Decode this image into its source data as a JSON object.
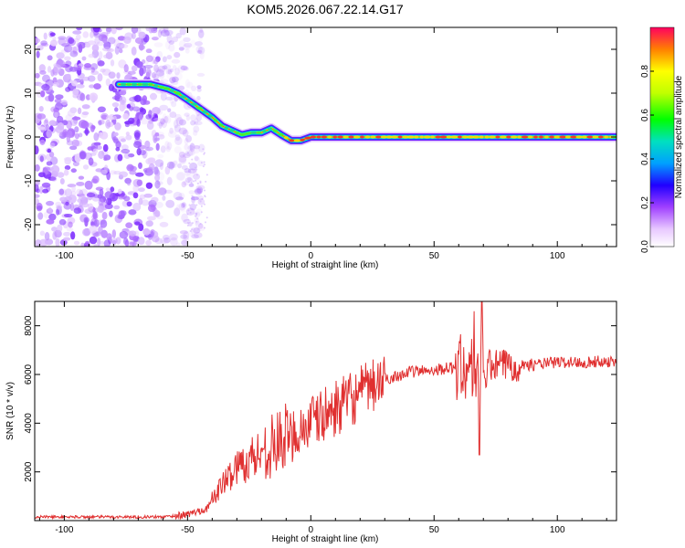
{
  "title": "KOM5.2026.067.22.14.G17",
  "chart_data": [
    {
      "type": "heatmap",
      "xlabel": "Height of straight line (km)",
      "ylabel": "Frequency (Hz)",
      "xlim": [
        -112,
        124
      ],
      "ylim": [
        -25,
        25
      ],
      "xticks": [
        -100,
        -50,
        0,
        50,
        100
      ],
      "yticks": [
        -20,
        -10,
        0,
        10,
        20
      ],
      "colorbar": {
        "label": "Normalized spectral amplitude",
        "range": [
          0.0,
          1.0
        ],
        "ticks": [
          "0.0",
          "0.2",
          "0.4",
          "0.6",
          "0.8"
        ]
      },
      "ridge": {
        "x": [
          -78,
          -65,
          -58,
          -54,
          -50,
          -45,
          -40,
          -36,
          -32,
          -28,
          -24,
          -20,
          -16,
          -12,
          -8,
          -4,
          0,
          10,
          30,
          60,
          90,
          124
        ],
        "y": [
          12,
          12,
          11,
          10,
          8.5,
          6.5,
          4.5,
          2.5,
          1.5,
          0.5,
          1,
          1,
          2,
          0.5,
          -0.8,
          -0.8,
          0,
          0,
          0,
          0,
          0,
          0
        ]
      },
      "noise_region_x": [
        -112,
        -52
      ]
    },
    {
      "type": "line",
      "xlabel": "Height of straight line (km)",
      "ylabel": "SNR (10 * v/v)",
      "xlim": [
        -112,
        124
      ],
      "ylim": [
        0,
        9000
      ],
      "xticks": [
        -100,
        -50,
        0,
        50,
        100
      ],
      "yticks": [
        2000,
        4000,
        6000,
        8000
      ],
      "color": "#e03030",
      "trend": {
        "x": [
          -112,
          -60,
          -50,
          -42,
          -38,
          -30,
          -20,
          -10,
          0,
          10,
          20,
          30,
          40,
          50,
          60,
          65,
          70,
          80,
          90,
          100,
          110,
          124
        ],
        "y": [
          150,
          150,
          250,
          500,
          1200,
          2200,
          2800,
          3400,
          4000,
          4600,
          5200,
          5800,
          6100,
          6200,
          6300,
          6200,
          6300,
          6400,
          6400,
          6500,
          6500,
          6550
        ]
      }
    }
  ]
}
